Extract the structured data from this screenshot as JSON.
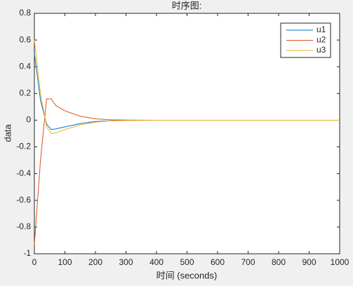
{
  "chart_data": {
    "type": "line",
    "title": "时序图:",
    "xlabel": "时间 (seconds)",
    "ylabel": "data",
    "x": [
      0,
      20,
      40,
      55,
      70,
      100,
      150,
      200,
      250,
      300,
      400,
      500,
      600,
      700,
      800,
      900,
      1000
    ],
    "series": [
      {
        "name": "u1",
        "color": "#0072bd",
        "values": [
          0.5,
          0.15,
          -0.03,
          -0.07,
          -0.065,
          -0.05,
          -0.025,
          -0.01,
          -0.004,
          -0.001,
          0,
          0,
          0,
          0,
          0,
          0,
          0
        ]
      },
      {
        "name": "u2",
        "color": "#d95319",
        "values": [
          -0.93,
          -0.3,
          0.16,
          0.16,
          0.11,
          0.07,
          0.03,
          0.01,
          0.003,
          0.001,
          0,
          0,
          0,
          0,
          0,
          0,
          0
        ]
      },
      {
        "name": "u3",
        "color": "#edb120",
        "values": [
          0.6,
          0.2,
          -0.05,
          -0.1,
          -0.095,
          -0.07,
          -0.035,
          -0.015,
          -0.005,
          -0.002,
          0,
          0,
          0,
          0,
          0,
          0,
          0
        ]
      }
    ],
    "xlim": [
      0,
      1000
    ],
    "xticks": [
      0,
      100,
      200,
      300,
      400,
      500,
      600,
      700,
      800,
      900,
      1000
    ],
    "ylim": [
      -1,
      0.8
    ],
    "yticks": [
      -1,
      -0.8,
      -0.6,
      -0.4,
      -0.2,
      0,
      0.2,
      0.4,
      0.6,
      0.8
    ],
    "grid": false,
    "legend": "upper right"
  }
}
